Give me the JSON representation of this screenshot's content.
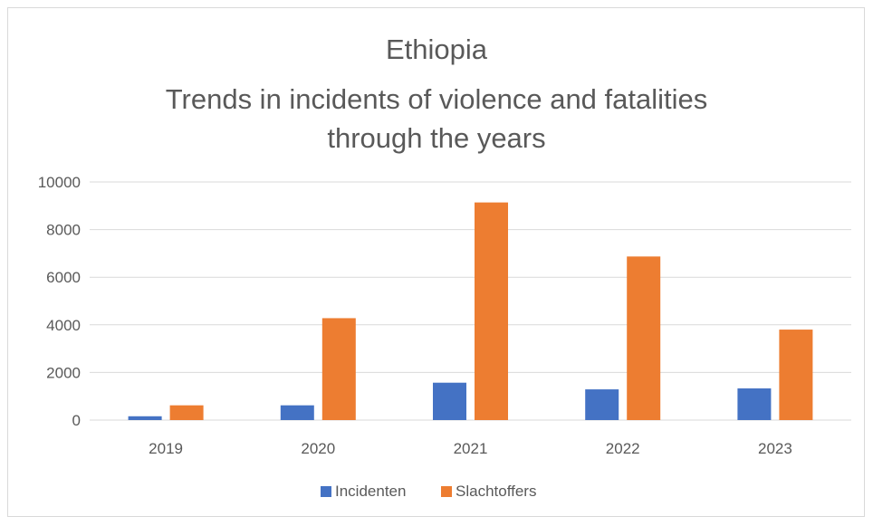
{
  "chart_data": {
    "type": "bar",
    "title_lines": [
      "Ethiopia",
      "Trends in incidents of violence and fatalities",
      "through the years"
    ],
    "categories": [
      "2019",
      "2020",
      "2021",
      "2022",
      "2023"
    ],
    "series": [
      {
        "name": "Incidenten",
        "color": "#4472c4",
        "values": [
          160,
          620,
          1570,
          1290,
          1330
        ]
      },
      {
        "name": "Slachtoffers",
        "color": "#ed7d31",
        "values": [
          620,
          4280,
          9140,
          6870,
          3800
        ]
      }
    ],
    "ylim": [
      0,
      10000
    ],
    "yticks": [
      0,
      2000,
      4000,
      6000,
      8000,
      10000
    ],
    "grid": true,
    "legend_position": "bottom"
  }
}
